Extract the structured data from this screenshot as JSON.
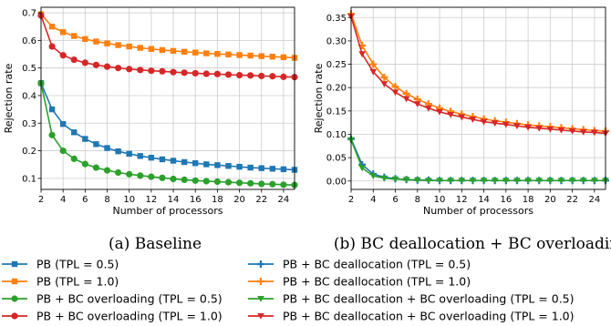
{
  "colors": {
    "blue": "#1f77b4",
    "orange": "#ff7f0e",
    "green": "#2ca02c",
    "red": "#d62728",
    "grid": "#cccccc"
  },
  "chart_data": [
    {
      "type": "line",
      "caption": "(a) Baseline",
      "xlabel": "Number of processors",
      "ylabel": "Rejection rate",
      "xlim": [
        2,
        25
      ],
      "ylim": [
        0.06,
        0.72
      ],
      "xticks": [
        2,
        4,
        6,
        8,
        10,
        12,
        14,
        16,
        18,
        20,
        22,
        24
      ],
      "yticks": [
        0.1,
        0.2,
        0.3,
        0.4,
        0.5,
        0.6,
        0.7
      ],
      "ytick_labels": [
        "0.1",
        "0.2",
        "0.3",
        "0.4",
        "0.5",
        "0.6",
        "0.7"
      ],
      "grid": true,
      "x": [
        2,
        3,
        4,
        5,
        6,
        7,
        8,
        9,
        10,
        11,
        12,
        13,
        14,
        15,
        16,
        17,
        18,
        19,
        20,
        21,
        22,
        23,
        24,
        25
      ],
      "series": [
        {
          "name": "PB (TPL = 0.5)",
          "color": "#1f77b4",
          "marker": "square",
          "values": [
            0.445,
            0.35,
            0.297,
            0.267,
            0.243,
            0.224,
            0.21,
            0.198,
            0.189,
            0.181,
            0.175,
            0.169,
            0.164,
            0.159,
            0.155,
            0.151,
            0.148,
            0.145,
            0.142,
            0.139,
            0.137,
            0.135,
            0.133,
            0.131
          ]
        },
        {
          "name": "PB (TPL = 1.0)",
          "color": "#ff7f0e",
          "marker": "square",
          "values": [
            0.695,
            0.65,
            0.63,
            0.616,
            0.605,
            0.596,
            0.589,
            0.583,
            0.578,
            0.573,
            0.569,
            0.565,
            0.562,
            0.559,
            0.556,
            0.553,
            0.551,
            0.549,
            0.547,
            0.545,
            0.543,
            0.541,
            0.539,
            0.537
          ]
        },
        {
          "name": "PB + BC overloading (TPL = 0.5)",
          "color": "#2ca02c",
          "marker": "circle",
          "values": [
            0.445,
            0.257,
            0.2,
            0.171,
            0.152,
            0.139,
            0.129,
            0.121,
            0.115,
            0.11,
            0.106,
            0.102,
            0.098,
            0.095,
            0.092,
            0.09,
            0.088,
            0.086,
            0.084,
            0.082,
            0.08,
            0.079,
            0.077,
            0.076
          ]
        },
        {
          "name": "PB + BC overloading (TPL = 1.0)",
          "color": "#d62728",
          "marker": "circle",
          "values": [
            0.69,
            0.578,
            0.546,
            0.53,
            0.519,
            0.511,
            0.505,
            0.5,
            0.496,
            0.493,
            0.49,
            0.488,
            0.485,
            0.483,
            0.481,
            0.479,
            0.478,
            0.476,
            0.474,
            0.473,
            0.471,
            0.47,
            0.468,
            0.467
          ]
        }
      ]
    },
    {
      "type": "line",
      "caption": "(b) BC deallocation + BC overloading",
      "xlabel": "Number of processors",
      "ylabel": "Rejection rate",
      "xlim": [
        2,
        25
      ],
      "ylim": [
        -0.018,
        0.372
      ],
      "xticks": [
        2,
        4,
        6,
        8,
        10,
        12,
        14,
        16,
        18,
        20,
        22,
        24
      ],
      "yticks": [
        0.0,
        0.05,
        0.1,
        0.15,
        0.2,
        0.25,
        0.3,
        0.35
      ],
      "ytick_labels": [
        "0.00",
        "0.05",
        "0.10",
        "0.15",
        "0.20",
        "0.25",
        "0.30",
        "0.35"
      ],
      "grid": true,
      "x": [
        2,
        3,
        4,
        5,
        6,
        7,
        8,
        9,
        10,
        11,
        12,
        13,
        14,
        15,
        16,
        17,
        18,
        19,
        20,
        21,
        22,
        23,
        24,
        25
      ],
      "series": [
        {
          "name": "PB + BC deallocation (TPL = 0.5)",
          "color": "#1f77b4",
          "marker": "plus",
          "values": [
            0.09,
            0.035,
            0.015,
            0.008,
            0.005,
            0.003,
            0.002,
            0.002,
            0.001,
            0.001,
            0.001,
            0.001,
            0.001,
            0.001,
            0.001,
            0.001,
            0.001,
            0.001,
            0.001,
            0.001,
            0.001,
            0.001,
            0.001,
            0.001
          ]
        },
        {
          "name": "PB + BC deallocation (TPL = 1.0)",
          "color": "#ff7f0e",
          "marker": "plus",
          "values": [
            0.358,
            0.29,
            0.25,
            0.222,
            0.202,
            0.187,
            0.175,
            0.165,
            0.156,
            0.149,
            0.143,
            0.138,
            0.133,
            0.129,
            0.126,
            0.123,
            0.12,
            0.118,
            0.116,
            0.114,
            0.112,
            0.11,
            0.108,
            0.107
          ]
        },
        {
          "name": "PB + BC deallocation + BC overloading (TPL = 0.5)",
          "color": "#2ca02c",
          "marker": "triangle",
          "values": [
            0.088,
            0.028,
            0.011,
            0.006,
            0.004,
            0.003,
            0.002,
            0.001,
            0.001,
            0.001,
            0.001,
            0.001,
            0.001,
            0.001,
            0.001,
            0.001,
            0.001,
            0.001,
            0.001,
            0.001,
            0.001,
            0.001,
            0.001,
            0.001
          ]
        },
        {
          "name": "PB + BC deallocation + BC overloading (TPL = 1.0)",
          "color": "#d62728",
          "marker": "triangle",
          "values": [
            0.352,
            0.272,
            0.234,
            0.208,
            0.19,
            0.176,
            0.165,
            0.156,
            0.148,
            0.142,
            0.137,
            0.132,
            0.127,
            0.124,
            0.121,
            0.118,
            0.115,
            0.113,
            0.111,
            0.109,
            0.107,
            0.105,
            0.104,
            0.102
          ]
        }
      ]
    }
  ],
  "legend": [
    {
      "label": "PB (TPL = 0.5)",
      "color": "#1f77b4",
      "marker": "square"
    },
    {
      "label": "PB (TPL = 1.0)",
      "color": "#ff7f0e",
      "marker": "square"
    },
    {
      "label": "PB + BC overloading (TPL = 0.5)",
      "color": "#2ca02c",
      "marker": "circle"
    },
    {
      "label": "PB + BC overloading (TPL = 1.0)",
      "color": "#d62728",
      "marker": "circle"
    },
    {
      "label": "PB + BC deallocation (TPL = 0.5)",
      "color": "#1f77b4",
      "marker": "plus"
    },
    {
      "label": "PB + BC deallocation (TPL = 1.0)",
      "color": "#ff7f0e",
      "marker": "plus"
    },
    {
      "label": "PB + BC deallocation + BC overloading (TPL = 0.5)",
      "color": "#2ca02c",
      "marker": "triangle"
    },
    {
      "label": "PB + BC deallocation + BC overloading (TPL = 1.0)",
      "color": "#d62728",
      "marker": "triangle"
    }
  ]
}
